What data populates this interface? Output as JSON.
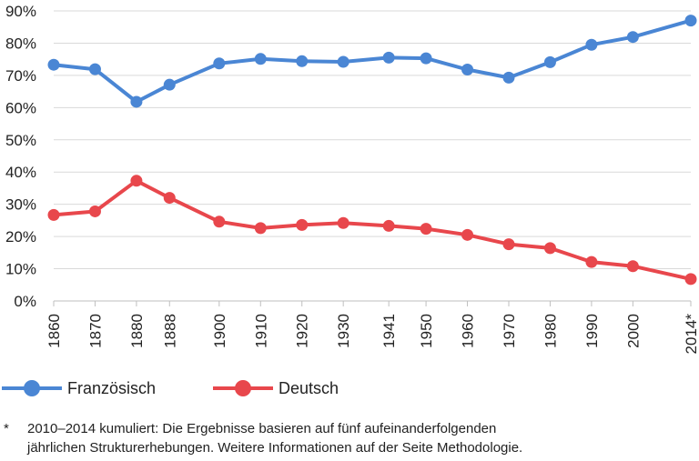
{
  "chart_data": {
    "type": "line",
    "x": [
      "1860",
      "1870",
      "1880",
      "1888",
      "1900",
      "1910",
      "1920",
      "1930",
      "1941",
      "1950",
      "1960",
      "1970",
      "1980",
      "1990",
      "2000",
      "2014*"
    ],
    "x_numeric": [
      1860,
      1870,
      1880,
      1888,
      1900,
      1910,
      1920,
      1930,
      1941,
      1950,
      1960,
      1970,
      1980,
      1990,
      2000,
      2014
    ],
    "series": [
      {
        "name": "Französisch",
        "color": "#4a86d4",
        "values": [
          73.3,
          71.9,
          61.8,
          67.1,
          73.7,
          75.1,
          74.4,
          74.2,
          75.5,
          75.3,
          71.8,
          69.3,
          74.1,
          79.5,
          81.9,
          87.0
        ]
      },
      {
        "name": "Deutsch",
        "color": "#e8474c",
        "values": [
          26.7,
          27.8,
          37.3,
          32.0,
          24.6,
          22.6,
          23.6,
          24.2,
          23.3,
          22.4,
          20.5,
          17.6,
          16.4,
          12.1,
          10.8,
          6.8
        ]
      }
    ],
    "yticks": [
      "0%",
      "10%",
      "20%",
      "30%",
      "40%",
      "50%",
      "60%",
      "70%",
      "80%",
      "90%"
    ],
    "ylim": [
      0,
      90
    ],
    "grid": "horizontal",
    "legend_position": "bottom"
  },
  "footnote": {
    "marker": "*",
    "lines": [
      "2010–2014 kumuliert: Die Ergebnisse basieren auf fünf aufeinanderfolgenden",
      "jährlichen Strukturerhebungen. Weitere Informationen auf der Seite Methodologie."
    ]
  }
}
